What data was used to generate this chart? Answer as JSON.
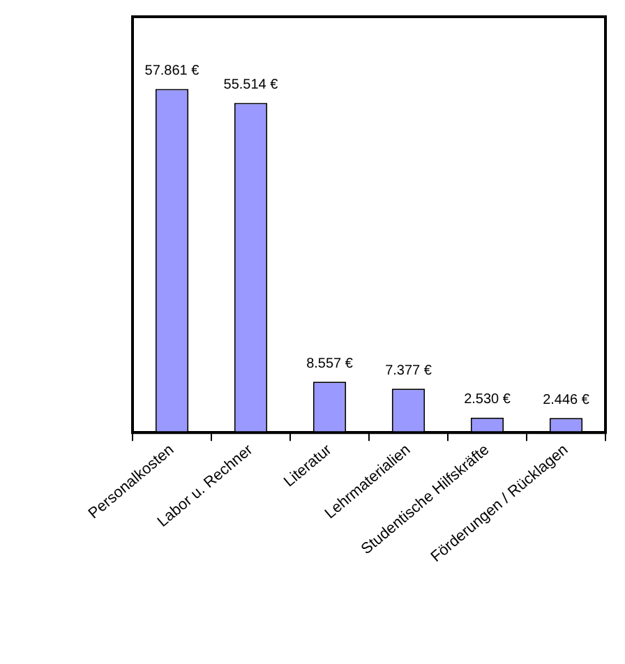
{
  "chart_data": {
    "type": "bar",
    "categories": [
      "Personalkosten",
      "Labor u. Rechner",
      "Literatur",
      "Lehrmaterialien",
      "Studentische Hilfskräfte",
      "Förderungen / Rücklagen"
    ],
    "values": [
      57861,
      55514,
      8557,
      7377,
      2530,
      2446
    ],
    "value_labels": [
      "57.861 €",
      "55.514 €",
      "8.557 €",
      "7.377 €",
      "2.530 €",
      "2.446 €"
    ],
    "color": "#9999ff",
    "ylim": [
      0,
      70000
    ],
    "tick_labels": "x",
    "grid": false,
    "legend": false
  }
}
